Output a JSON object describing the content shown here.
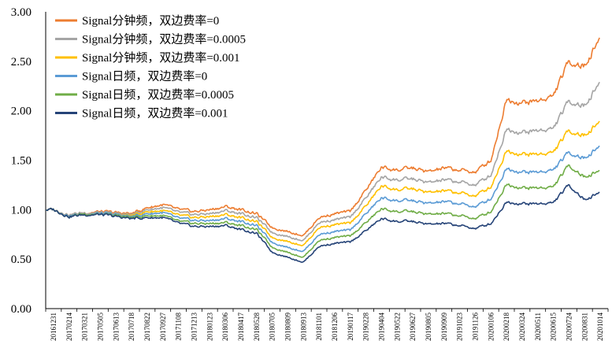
{
  "chart_data": {
    "type": "line",
    "title": "",
    "xlabel": "",
    "ylabel": "",
    "ylim": [
      0.0,
      3.0
    ],
    "y_ticks": [
      "0.00",
      "0.50",
      "1.00",
      "1.50",
      "2.00",
      "2.50",
      "3.00"
    ],
    "x_ticks": [
      "20161231",
      "20170214",
      "20170321",
      "20170505",
      "20170613",
      "20170718",
      "20170822",
      "20170927",
      "20171108",
      "20171213",
      "20180123",
      "20180306",
      "20180417",
      "20180528",
      "20180705",
      "20180809",
      "20180913",
      "20181101",
      "20181206",
      "20190117",
      "20190228",
      "20190404",
      "20190522",
      "20190627",
      "20190805",
      "20190909",
      "20191023",
      "20191126",
      "20200106",
      "20200218",
      "20200324",
      "20200511",
      "20200615",
      "20200724",
      "20200831",
      "20201014"
    ],
    "grid": false,
    "legend_position": "top-left",
    "series": [
      {
        "name": "Signal分钟频，双边费率=0",
        "color": "#ED7D31",
        "values": [
          1.0,
          0.95,
          0.97,
          0.98,
          0.97,
          0.96,
          1.02,
          1.05,
          1.0,
          0.98,
          1.0,
          1.03,
          1.0,
          0.96,
          0.82,
          0.78,
          0.74,
          0.92,
          0.96,
          0.98,
          1.2,
          1.43,
          1.4,
          1.42,
          1.38,
          1.42,
          1.4,
          1.38,
          1.5,
          2.12,
          2.08,
          2.1,
          2.15,
          2.5,
          2.45,
          2.75
        ]
      },
      {
        "name": "Signal分钟频，双边费率=0.0005",
        "color": "#A5A5A5",
        "values": [
          1.0,
          0.95,
          0.97,
          0.97,
          0.96,
          0.95,
          1.0,
          1.02,
          0.97,
          0.95,
          0.96,
          0.99,
          0.96,
          0.92,
          0.77,
          0.73,
          0.69,
          0.87,
          0.9,
          0.92,
          1.12,
          1.33,
          1.3,
          1.31,
          1.27,
          1.3,
          1.28,
          1.25,
          1.35,
          1.82,
          1.78,
          1.8,
          1.82,
          2.1,
          2.05,
          2.3
        ]
      },
      {
        "name": "Signal分钟频，双边费率=0.001",
        "color": "#FFC000",
        "values": [
          1.0,
          0.94,
          0.96,
          0.96,
          0.95,
          0.94,
          0.98,
          0.99,
          0.94,
          0.92,
          0.93,
          0.95,
          0.92,
          0.88,
          0.72,
          0.68,
          0.64,
          0.82,
          0.85,
          0.86,
          1.04,
          1.24,
          1.2,
          1.21,
          1.17,
          1.19,
          1.17,
          1.14,
          1.23,
          1.6,
          1.56,
          1.56,
          1.58,
          1.8,
          1.75,
          1.9
        ]
      },
      {
        "name": "Signal日频，双边费率=0",
        "color": "#5B9BD5",
        "values": [
          1.0,
          0.94,
          0.96,
          0.96,
          0.95,
          0.93,
          0.96,
          0.97,
          0.91,
          0.89,
          0.89,
          0.91,
          0.88,
          0.84,
          0.67,
          0.62,
          0.58,
          0.75,
          0.78,
          0.79,
          0.96,
          1.12,
          1.09,
          1.09,
          1.06,
          1.08,
          1.06,
          1.03,
          1.11,
          1.42,
          1.38,
          1.38,
          1.4,
          1.58,
          1.52,
          1.65
        ]
      },
      {
        "name": "Signal日频，双边费率=0.0005",
        "color": "#70AD47",
        "values": [
          1.0,
          0.93,
          0.96,
          0.95,
          0.94,
          0.92,
          0.94,
          0.94,
          0.88,
          0.86,
          0.86,
          0.87,
          0.84,
          0.8,
          0.62,
          0.57,
          0.52,
          0.69,
          0.72,
          0.73,
          0.87,
          1.01,
          0.98,
          0.98,
          0.95,
          0.96,
          0.94,
          0.91,
          0.98,
          1.26,
          1.22,
          1.22,
          1.23,
          1.45,
          1.33,
          1.4
        ]
      },
      {
        "name": "Signal日频，双边费率=0.001",
        "color": "#264478",
        "values": [
          1.0,
          0.93,
          0.95,
          0.95,
          0.93,
          0.91,
          0.92,
          0.92,
          0.86,
          0.83,
          0.83,
          0.84,
          0.8,
          0.76,
          0.57,
          0.52,
          0.47,
          0.63,
          0.66,
          0.67,
          0.79,
          0.91,
          0.88,
          0.88,
          0.85,
          0.86,
          0.84,
          0.81,
          0.86,
          1.08,
          1.06,
          1.06,
          1.07,
          1.25,
          1.1,
          1.18
        ]
      }
    ]
  }
}
